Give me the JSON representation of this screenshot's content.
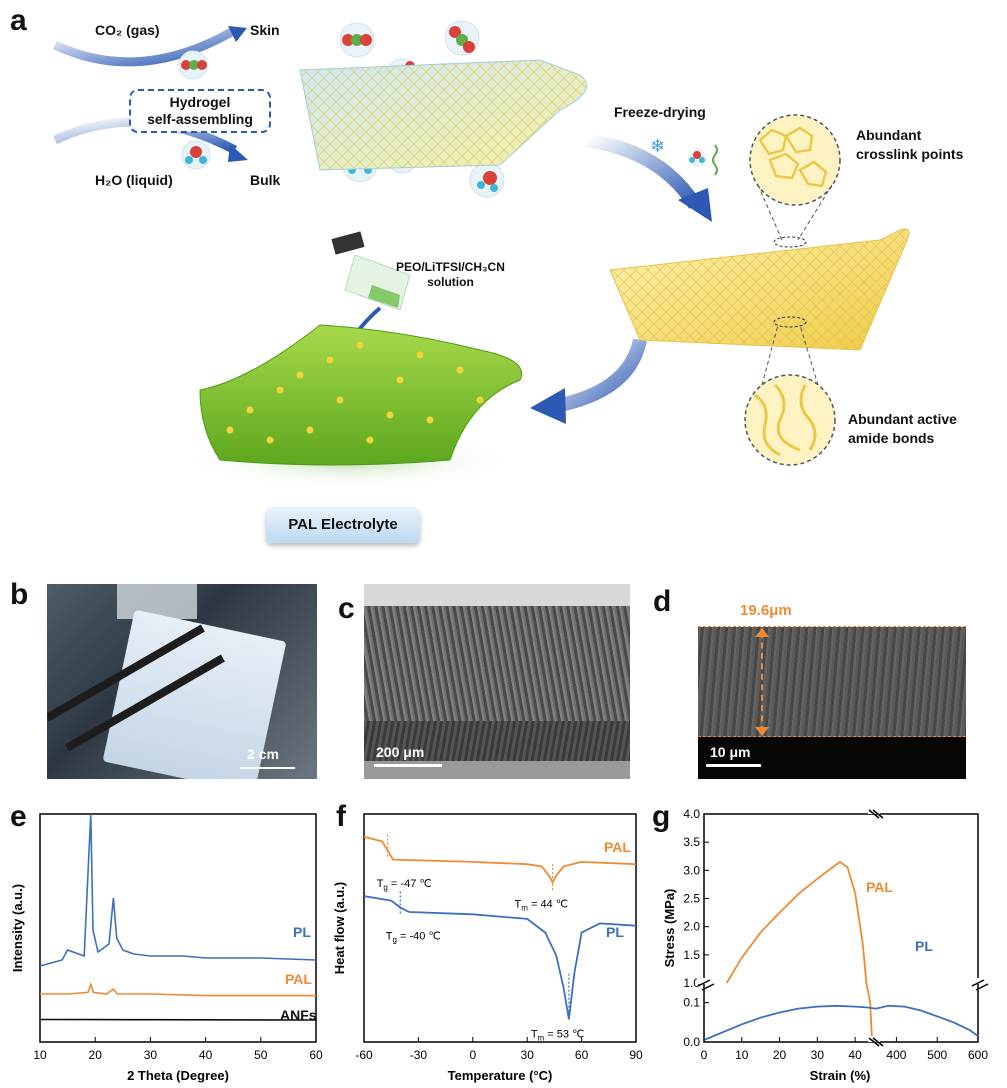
{
  "panel_labels": {
    "a": "a",
    "b": "b",
    "c": "c",
    "d": "d",
    "e": "e",
    "f": "f",
    "g": "g"
  },
  "scheme": {
    "co2_gas": "CO₂ (gas)",
    "skin": "Skin",
    "hydrogel_line1": "Hydrogel",
    "hydrogel_line2": "self-assembling",
    "h2o_liquid": "H₂O (liquid)",
    "bulk": "Bulk",
    "freeze_drying": "Freeze-drying",
    "crosslink_line1": "Abundant",
    "crosslink_line2": "crosslink points",
    "amide_line1": "Abundant active",
    "amide_line2": "amide bonds",
    "solution_line1": "PEO/LiTFSI/CH₃CN",
    "solution_line2": "solution",
    "pal_electrolyte": "PAL Electrolyte"
  },
  "photos": {
    "b_scalebar": "2 cm",
    "c_scalebar": "200 μm",
    "d_scalebar": "10 μm",
    "d_thickness": "19.6μm"
  },
  "colors": {
    "pl": "#3d6fbf",
    "pal": "#ef8a33",
    "anfs": "#111111"
  },
  "chart_data": [
    {
      "type": "line",
      "panel": "e",
      "xlabel": "2 Theta (Degree)",
      "ylabel": "Intensity (a.u.)",
      "xlim": [
        10,
        60
      ],
      "xticks": [
        10,
        20,
        30,
        40,
        50,
        60
      ],
      "series": [
        {
          "name": "PL",
          "x": [
            10,
            14,
            15,
            18,
            18.8,
            19.2,
            19.6,
            20.5,
            22.5,
            23.3,
            23.9,
            25,
            27,
            30,
            36,
            40,
            50,
            60
          ],
          "y": [
            0.22,
            0.25,
            0.3,
            0.27,
            0.75,
            0.98,
            0.4,
            0.29,
            0.33,
            0.56,
            0.36,
            0.3,
            0.28,
            0.27,
            0.27,
            0.26,
            0.26,
            0.25
          ]
        },
        {
          "name": "PAL",
          "x": [
            10,
            15,
            18.7,
            19.2,
            19.7,
            22,
            23.3,
            24,
            30,
            40,
            50,
            60
          ],
          "y": [
            0.1,
            0.1,
            0.11,
            0.16,
            0.11,
            0.1,
            0.13,
            0.1,
            0.1,
            0.09,
            0.09,
            0.09
          ]
        },
        {
          "name": "ANFs",
          "x": [
            10,
            20,
            30,
            40,
            50,
            60
          ],
          "y": [
            0.005,
            0.004,
            0.003,
            0.002,
            0.001,
            0.0
          ]
        }
      ]
    },
    {
      "type": "line",
      "panel": "f",
      "xlabel": "Temperature (°C)",
      "ylabel": "Heat flow (a.u.)",
      "xlim": [
        -60,
        90
      ],
      "xticks": [
        -60,
        -30,
        0,
        30,
        60,
        90
      ],
      "annotations": {
        "pal_tg": "T",
        "pal_tg_sub": "g",
        "pal_tg_val": " = -47 ℃",
        "pal_tm": "T",
        "pal_tm_sub": "m",
        "pal_tm_val": " = 44 ℃",
        "pl_tg": "T",
        "pl_tg_sub": "g",
        "pl_tg_val": " = -40 ℃",
        "pl_tm": "T",
        "pl_tm_sub": "m",
        "pl_tm_val": " = 53 ℃"
      },
      "series": [
        {
          "name": "PAL",
          "x": [
            -60,
            -50,
            -47,
            -44,
            0,
            30,
            38,
            42,
            44,
            46,
            50,
            60,
            90
          ],
          "y": [
            0.9,
            0.88,
            0.84,
            0.8,
            0.79,
            0.78,
            0.77,
            0.73,
            0.7,
            0.73,
            0.77,
            0.79,
            0.78
          ]
        },
        {
          "name": "PL",
          "x": [
            -60,
            -45,
            -40,
            -35,
            0,
            30,
            40,
            46,
            50,
            53,
            56,
            60,
            70,
            90
          ],
          "y": [
            0.64,
            0.62,
            0.59,
            0.57,
            0.56,
            0.54,
            0.48,
            0.38,
            0.24,
            0.1,
            0.3,
            0.48,
            0.52,
            0.51
          ]
        }
      ]
    },
    {
      "type": "line",
      "panel": "g",
      "xlabel": "Strain (%)",
      "ylabel": "Stress (MPa)",
      "x_ticks_shown": [
        0,
        10,
        20,
        30,
        40,
        400,
        500,
        600
      ],
      "y_ticks_shown": [
        0.0,
        0.1,
        1.0,
        1.5,
        2.0,
        2.5,
        3.0,
        3.5,
        4.0
      ],
      "axis_breaks": "x between 45 and 345; y between 0.15 and 1.0",
      "series": [
        {
          "name": "PAL",
          "x": [
            6,
            10,
            15,
            20,
            25,
            30,
            34,
            36,
            38,
            40,
            42,
            43,
            44,
            44.5
          ],
          "y": [
            1.0,
            1.45,
            1.9,
            2.25,
            2.58,
            2.85,
            3.05,
            3.15,
            3.05,
            2.6,
            1.7,
            1.0,
            0.1,
            0.0
          ]
        },
        {
          "name": "PL",
          "x": [
            0,
            5,
            10,
            15,
            20,
            25,
            30,
            35,
            40,
            43,
            350,
            380,
            420,
            460,
            500,
            540,
            580,
            600
          ],
          "y": [
            0.005,
            0.025,
            0.045,
            0.062,
            0.075,
            0.085,
            0.09,
            0.092,
            0.09,
            0.088,
            0.085,
            0.092,
            0.09,
            0.08,
            0.065,
            0.05,
            0.03,
            0.015
          ]
        }
      ]
    }
  ]
}
